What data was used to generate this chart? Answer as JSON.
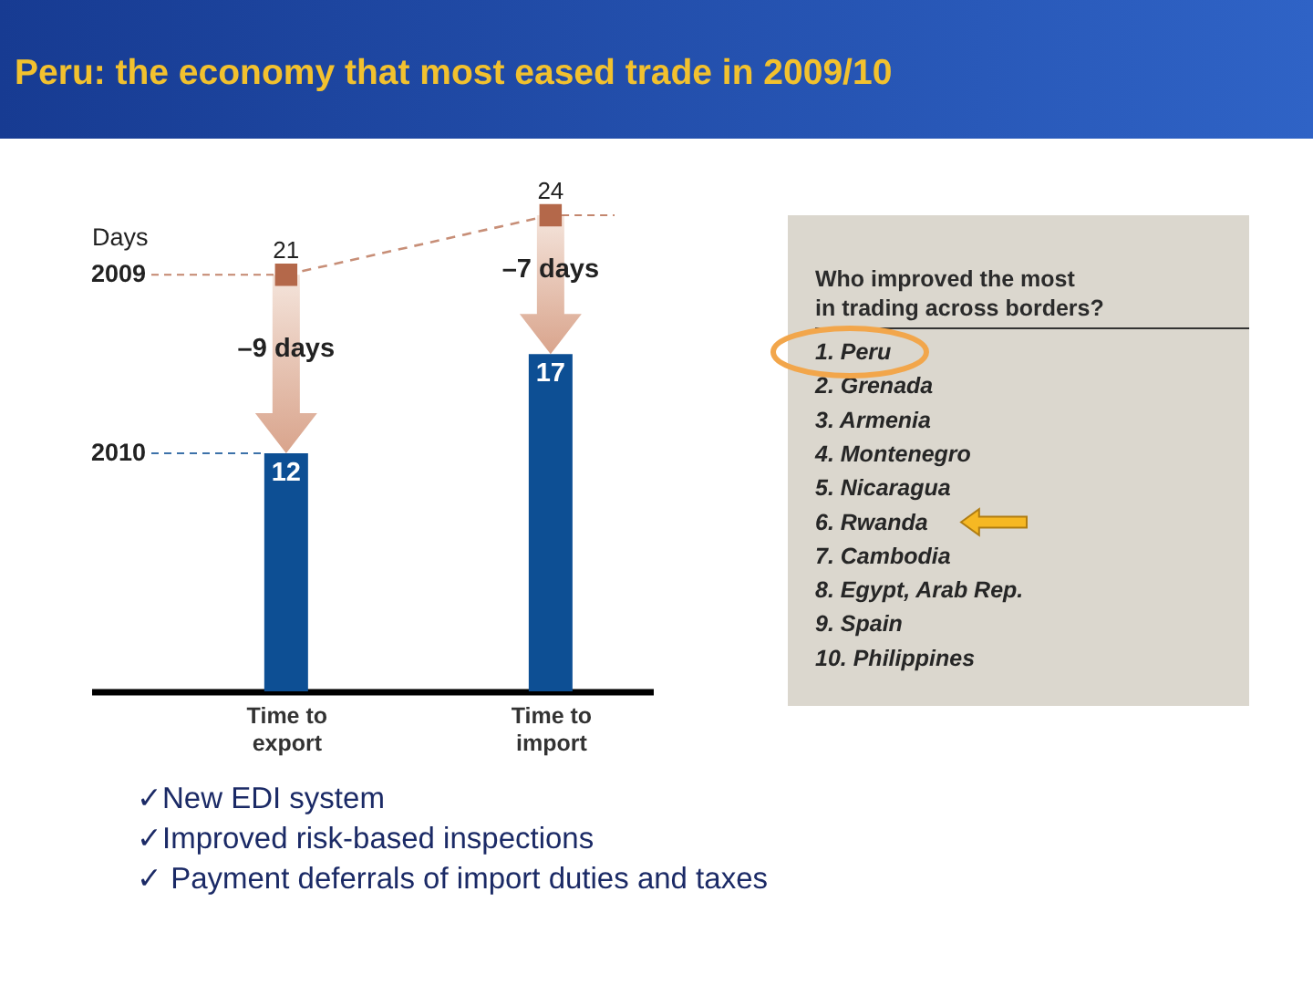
{
  "chart_data": [
    {
      "type": "bar",
      "title": "Peru: the economy that most eased trade in 2009/10",
      "ylabel": "Days",
      "categories": [
        "Time to\nexport",
        "Time to\nimport"
      ],
      "series": [
        {
          "name": "2010",
          "type": "bar",
          "color": "#0d4f94",
          "values": [
            12,
            17
          ]
        },
        {
          "name": "2009",
          "type": "line",
          "color": "#b4684a",
          "values": [
            21,
            24
          ]
        }
      ],
      "tick_labels": "x",
      "grid": false,
      "legend": "left",
      "data_labels": true,
      "line_style": "dashed",
      "marker": "square",
      "annotations": [
        "–9 days",
        "–7 days",
        "✓New EDI system",
        "✓Improved risk-based inspections",
        "✓ Payment deferrals of import duties and taxes"
      ]
    },
    {
      "type": "other",
      "title": "Who improved the most\nin trading across borders?",
      "annotations": [
        "1. Peru",
        "2. Grenada",
        "3. Armenia",
        "4. Montenegro",
        "5. Nicaragua",
        "6. Rwanda",
        "7. Cambodia",
        "8. Egypt, Arab Rep.",
        "9. Spain",
        "10. Philippines"
      ]
    }
  ]
}
